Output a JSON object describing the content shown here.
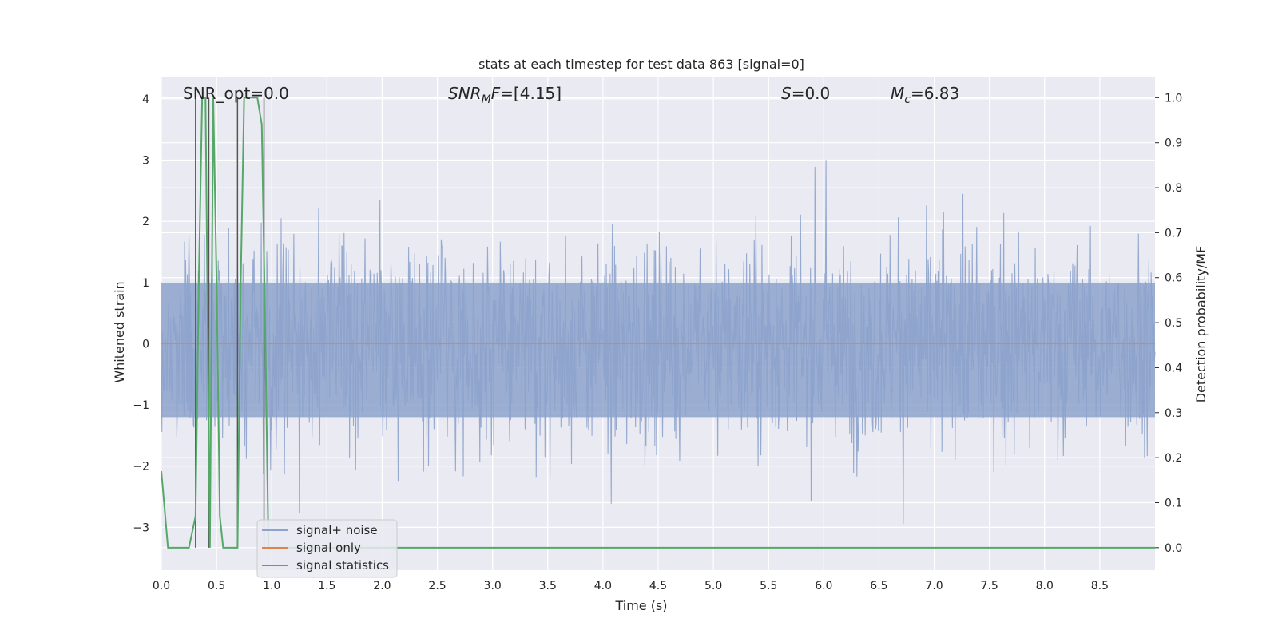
{
  "chart_data": {
    "type": "line",
    "title": "stats at each timestep for test data 863 [signal=0]",
    "xlabel": "Time (s)",
    "ylabel_left": "Whitened strain",
    "ylabel_right": "Detection probability/MF",
    "xlim": [
      0.0,
      9.0
    ],
    "ylim_left": [
      -3.7,
      4.35
    ],
    "ylim_right": [
      -0.05,
      1.045
    ],
    "x_ticks": [
      "0.0",
      "0.5",
      "1.0",
      "1.5",
      "2.0",
      "2.5",
      "3.0",
      "3.5",
      "4.0",
      "4.5",
      "5.0",
      "5.5",
      "6.0",
      "6.5",
      "7.0",
      "7.5",
      "8.0",
      "8.5"
    ],
    "y_left_ticks": [
      "4",
      "3",
      "2",
      "1",
      "0",
      "−1",
      "−2",
      "−3"
    ],
    "y_right_ticks": [
      "1.0",
      "0.9",
      "0.8",
      "0.7",
      "0.6",
      "0.5",
      "0.4",
      "0.3",
      "0.2",
      "0.1",
      "0.0"
    ],
    "grid": true,
    "legend_position": "lower-left",
    "annotations": {
      "snr_opt": "SNR_opt=0.0",
      "snr_mf": "SNR<sub>M</sub>F=[4.15]",
      "s": "S=0.0",
      "mc": "M<sub>c</sub>=6.83"
    },
    "series": [
      {
        "name": "signal+ noise",
        "color": "#8da3cc",
        "kind": "noise",
        "description_range": [
          -3.4,
          4.0
        ]
      },
      {
        "name": "signal only",
        "color": "#dd8452",
        "x": [
          0.0,
          9.0
        ],
        "y": [
          0.0,
          0.0
        ]
      },
      {
        "name": "signal statistics",
        "color": "#55a868",
        "axis": "right",
        "x": [
          0.0,
          0.06,
          0.12,
          0.19,
          0.25,
          0.31,
          0.34,
          0.37,
          0.4,
          0.44,
          0.47,
          0.5,
          0.53,
          0.56,
          0.59,
          0.62,
          0.66,
          0.69,
          0.72,
          0.75,
          0.78,
          0.81,
          0.84,
          0.87,
          0.91,
          0.94,
          0.97,
          1.0,
          1.5,
          2.0,
          3.0,
          4.0,
          5.0,
          6.0,
          7.0,
          8.0,
          9.0
        ],
        "y": [
          0.17,
          0.0,
          0.0,
          0.0,
          0.0,
          0.07,
          0.6,
          1.0,
          1.0,
          0.0,
          1.0,
          0.6,
          0.07,
          0.0,
          0.0,
          0.0,
          0.0,
          0.0,
          0.6,
          1.0,
          1.0,
          1.0,
          1.0,
          1.0,
          0.94,
          0.5,
          0.0,
          0.0,
          0.0,
          0.0,
          0.0,
          0.0,
          0.0,
          0.0,
          0.0,
          0.0,
          0.0
        ]
      }
    ],
    "vertical_lines_x": [
      0.31,
      0.43,
      0.69,
      0.93
    ]
  },
  "colors": {
    "axes_bg": "#eaeaf2",
    "grid": "#ffffff",
    "noise": "#8da3cc",
    "signal_only": "#dd8452",
    "statistics": "#55a868",
    "vlines": "#555555"
  }
}
